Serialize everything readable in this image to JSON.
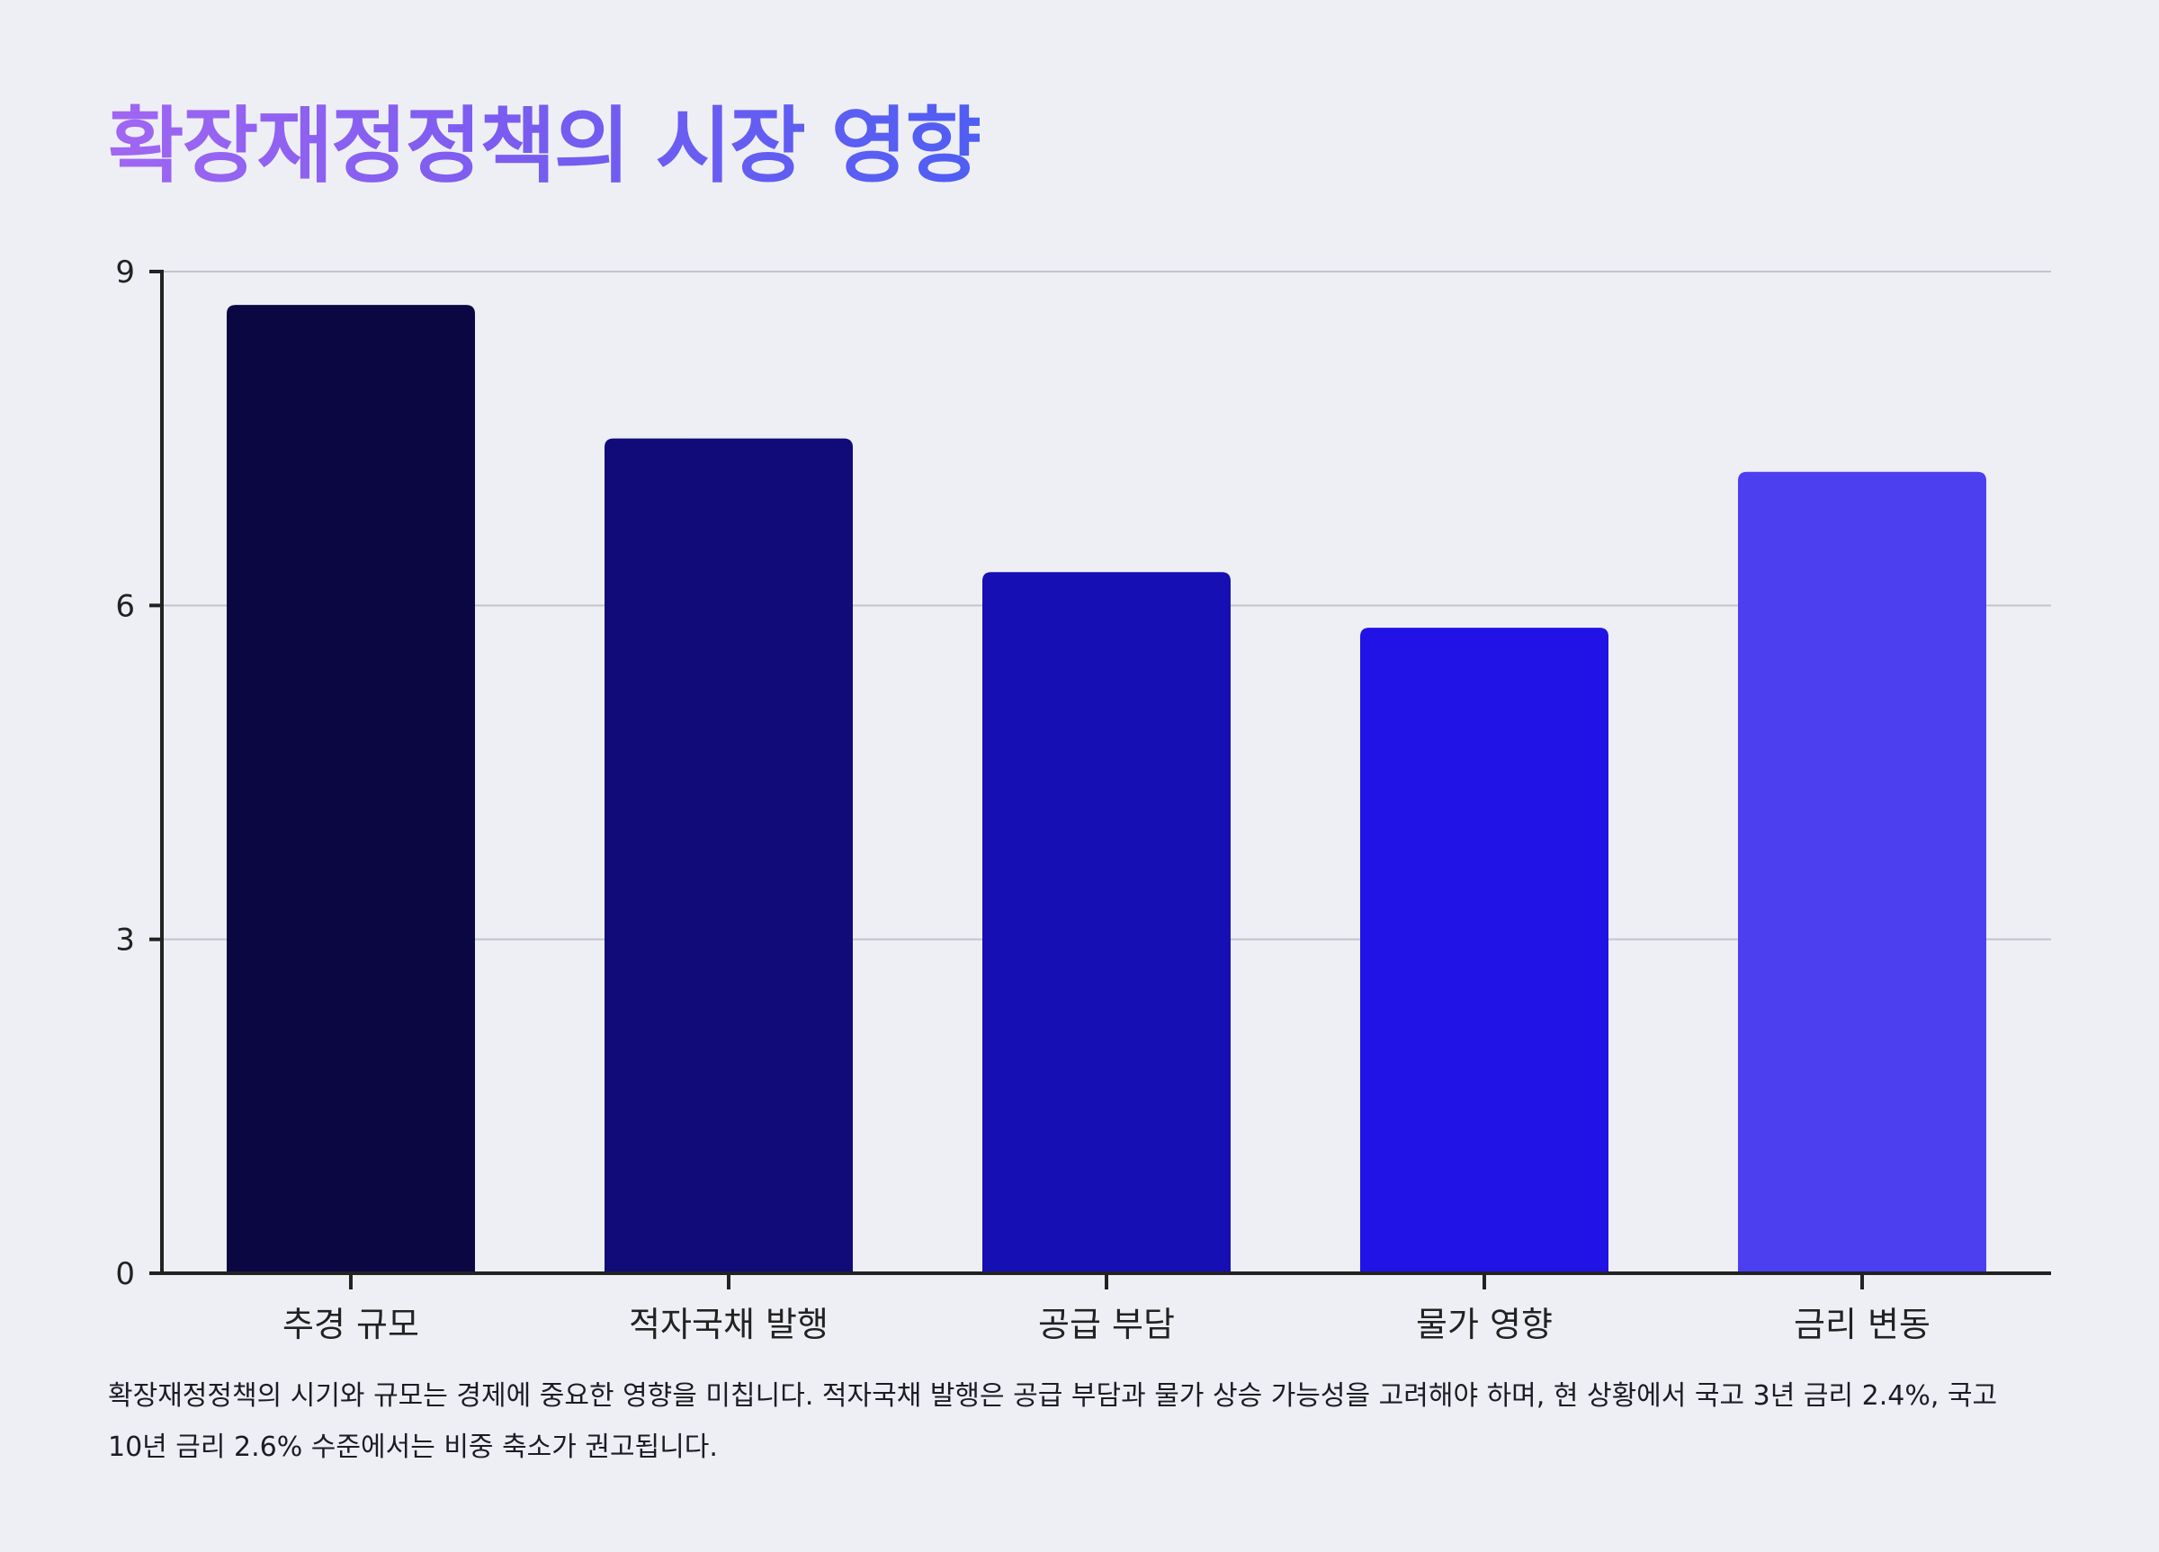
{
  "title": "확장재정정책의 시장 영향",
  "caption": "확장재정정책의 시기와 규모는 경제에 중요한 영향을 미칩니다. 적자국채 발행은 공급 부담과 물가 상승 가능성을 고려해야 하며, 현 상황에서 국고 3년 금리 2.4%, 국고 10년 금리 2.6% 수준에서는 비중 축소가 권고됩니다.",
  "colors": {
    "background": "#eeeff4",
    "gridline": "#c4c5cc",
    "axis": "#222222",
    "title_gradient": [
      "#a066f2",
      "#4f5ef3"
    ]
  },
  "chart_data": {
    "type": "bar",
    "title": "",
    "xlabel": "",
    "ylabel": "",
    "categories": [
      "추경 규모",
      "적자국채 발행",
      "공급 부담",
      "물가 영향",
      "금리 변동"
    ],
    "values": [
      8.7,
      7.5,
      6.3,
      5.8,
      7.2
    ],
    "bar_colors": [
      "#0b0742",
      "#110b7a",
      "#160fb4",
      "#2112e6",
      "#4b3ff0"
    ],
    "ylim": [
      0,
      9
    ],
    "yticks": [
      "0",
      "3",
      "6",
      "9"
    ],
    "grid": true
  }
}
